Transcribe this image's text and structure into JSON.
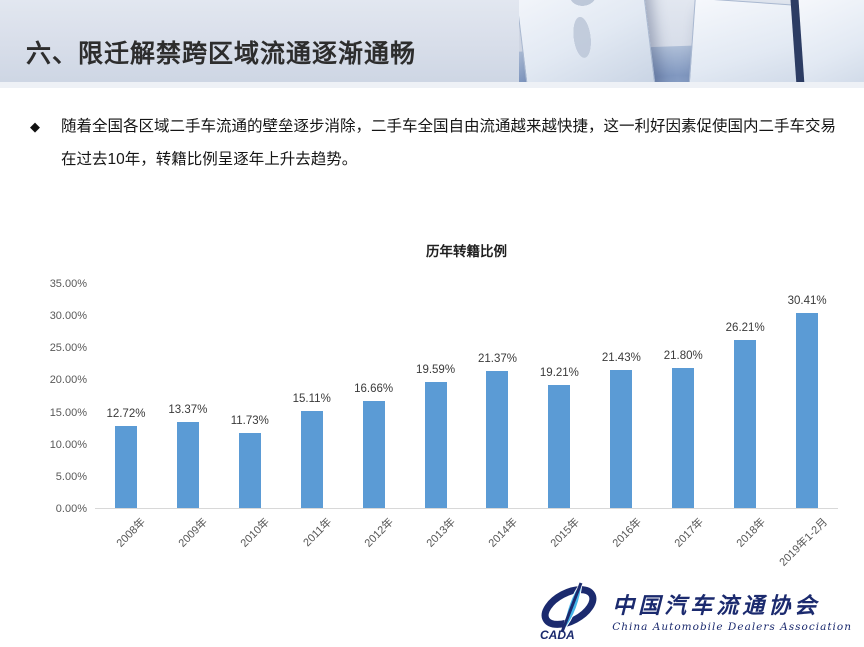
{
  "slide": {
    "header": {
      "title": "六、限迁解禁跨区域流通逐渐通畅"
    },
    "bullet": {
      "icon": "◆",
      "text": "随着全国各区域二手车流通的壁垒逐步消除，二手车全国自由流通越来越快捷，这一利好因素促使国内二手车交易在过去10年，转籍比例呈逐年上升去趋势。"
    }
  },
  "chart_data": {
    "type": "bar",
    "title": "历年转籍比例",
    "categories": [
      "2008年",
      "2009年",
      "2010年",
      "2011年",
      "2012年",
      "2013年",
      "2014年",
      "2015年",
      "2016年",
      "2017年",
      "2018年",
      "2019年1-2月"
    ],
    "values": [
      12.72,
      13.37,
      11.73,
      15.11,
      16.66,
      19.59,
      21.37,
      19.21,
      21.43,
      21.8,
      26.21,
      30.41
    ],
    "value_labels": [
      "12.72%",
      "13.37%",
      "11.73%",
      "15.11%",
      "16.66%",
      "19.59%",
      "21.37%",
      "19.21%",
      "21.43%",
      "21.80%",
      "26.21%",
      "30.41%"
    ],
    "y_ticks": [
      "35.00%",
      "30.00%",
      "25.00%",
      "20.00%",
      "15.00%",
      "10.00%",
      "5.00%",
      "0.00%"
    ],
    "ylim": [
      0,
      35
    ],
    "xlabel": "",
    "ylabel": "",
    "grid": false,
    "legend": "none",
    "bar_color": "#5B9BD5"
  },
  "footer": {
    "org_cn": "中国汽车流通协会",
    "org_en": "China Automobile Dealers Association",
    "logo_abbr": "CADA",
    "logo_navy": "#1b2a6e",
    "logo_lightblue": "#45b5e8"
  }
}
